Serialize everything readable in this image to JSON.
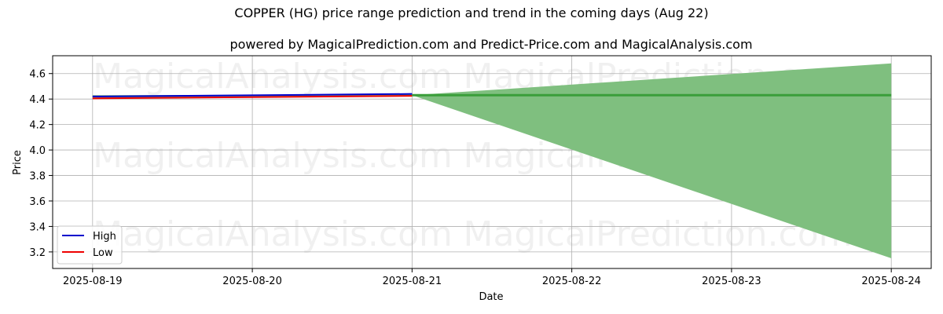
{
  "chart_data": {
    "type": "line",
    "title": "COPPER (HG) price range prediction and trend in the coming days (Aug 22)",
    "subtitle": "powered by MagicalPrediction.com and Predict-Price.com and MagicalAnalysis.com",
    "xlabel": "Date",
    "ylabel": "Price",
    "x_ticks": [
      "2025-08-19",
      "2025-08-20",
      "2025-08-21",
      "2025-08-22",
      "2025-08-23",
      "2025-08-24"
    ],
    "y_ticks": [
      3.2,
      3.4,
      3.6,
      3.8,
      4.0,
      4.2,
      4.4,
      4.6
    ],
    "x_range": [
      "2025-08-18T18:00",
      "2025-08-24T06:00"
    ],
    "ylim": [
      3.07,
      4.74
    ],
    "grid": true,
    "legend_position": "bottom-left",
    "series": [
      {
        "name": "High",
        "color": "#0000cc",
        "x": [
          "2025-08-19",
          "2025-08-21"
        ],
        "values": [
          4.42,
          4.44
        ]
      },
      {
        "name": "Low",
        "color": "#ee0000",
        "x": [
          "2025-08-19",
          "2025-08-21"
        ],
        "values": [
          4.405,
          4.425
        ]
      }
    ],
    "historical_band": {
      "color": "#7fbf7f",
      "x": [
        "2025-08-19",
        "2025-08-21"
      ],
      "upper": [
        4.43,
        4.435
      ],
      "lower": [
        4.405,
        4.42
      ]
    },
    "prediction_band": {
      "color": "#7fbf7f",
      "x": [
        "2025-08-21",
        "2025-08-24"
      ],
      "upper": [
        4.43,
        4.68
      ],
      "lower": [
        4.43,
        3.15
      ]
    },
    "trend_line": {
      "color": "#3a9e3a",
      "x": [
        "2025-08-21",
        "2025-08-24"
      ],
      "values": [
        4.43,
        4.43
      ]
    },
    "watermarks": [
      "MagicalAnalysis.com",
      "MagicalPrediction.com"
    ]
  }
}
